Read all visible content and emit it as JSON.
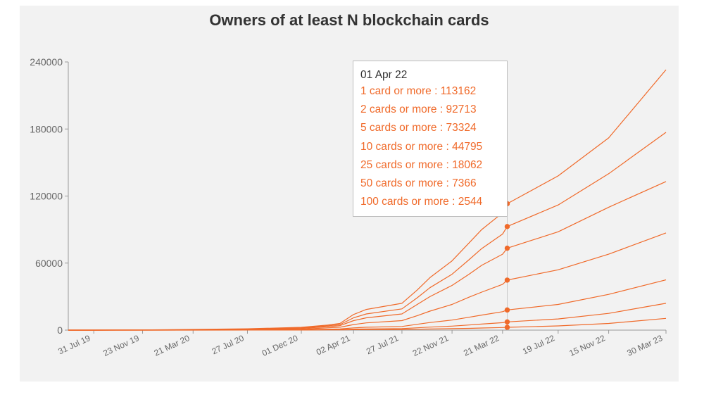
{
  "chart_data": {
    "type": "line",
    "title": "Owners of at least N blockchain cards",
    "xlabel": "",
    "ylabel": "",
    "ylim": [
      0,
      240000
    ],
    "y_ticks": [
      0,
      60000,
      120000,
      180000,
      240000
    ],
    "y_tick_labels": [
      "0",
      "60000",
      "120000",
      "180000",
      "240000"
    ],
    "x_tick_labels": [
      "31 Jul 19",
      "23 Nov 19",
      "21 Mar 20",
      "27 Jul 20",
      "01 Dec 20",
      "02 Apr 21",
      "27 Jul 21",
      "22 Nov 21",
      "21 Mar 22",
      "19 Jul 22",
      "15 Nov 22",
      "30 Mar 23"
    ],
    "x": [
      "01 Jun 19",
      "31 Jul 19",
      "23 Nov 19",
      "21 Mar 20",
      "27 Jul 20",
      "01 Dec 20",
      "01 Feb 21",
      "01 Mar 21",
      "02 Apr 21",
      "01 May 21",
      "27 Jul 21",
      "01 Sep 21",
      "01 Oct 21",
      "22 Nov 21",
      "01 Jan 22",
      "01 Feb 22",
      "21 Mar 22",
      "01 Apr 22",
      "19 Jul 22",
      "15 Nov 22",
      "30 Mar 23"
    ],
    "x_positions": [
      0,
      60,
      175,
      294,
      422,
      549,
      610,
      640,
      672,
      702,
      786,
      822,
      852,
      904,
      944,
      974,
      1023,
      1034,
      1154,
      1273,
      1408
    ],
    "line_color": "#f06a2a",
    "grid": false,
    "series": [
      {
        "name": "1 card or more",
        "values": [
          0,
          0,
          200,
          600,
          1200,
          2500,
          4500,
          6000,
          14000,
          18500,
          24000,
          36000,
          47000,
          62000,
          78000,
          90000,
          105000,
          113162,
          138000,
          172000,
          233000
        ]
      },
      {
        "name": "2 cards or more",
        "values": [
          0,
          0,
          150,
          450,
          900,
          2000,
          3800,
          5000,
          11000,
          14500,
          19000,
          29000,
          38000,
          50000,
          63000,
          73000,
          86000,
          92713,
          112000,
          140000,
          177000
        ]
      },
      {
        "name": "5 cards or more",
        "values": [
          0,
          0,
          100,
          300,
          650,
          1500,
          3000,
          4000,
          8500,
          11000,
          14500,
          23000,
          30000,
          40000,
          50000,
          58000,
          68000,
          73324,
          88000,
          110000,
          133000
        ]
      },
      {
        "name": "10 cards or more",
        "values": [
          0,
          0,
          60,
          200,
          400,
          900,
          2000,
          2600,
          5000,
          6500,
          8500,
          13000,
          17000,
          23000,
          29500,
          34000,
          41000,
          44795,
          54000,
          68000,
          87000
        ]
      },
      {
        "name": "25 cards or more",
        "values": [
          0,
          0,
          30,
          80,
          180,
          400,
          800,
          1100,
          2000,
          2600,
          3300,
          5200,
          6800,
          9000,
          11500,
          13500,
          16500,
          18062,
          23000,
          32000,
          45000
        ]
      },
      {
        "name": "50 cards or more",
        "values": [
          0,
          0,
          15,
          40,
          90,
          200,
          400,
          500,
          900,
          1100,
          1400,
          2100,
          2700,
          3600,
          4600,
          5400,
          6700,
          7366,
          10000,
          15000,
          24000
        ]
      },
      {
        "name": "100 cards or more",
        "values": [
          0,
          0,
          5,
          15,
          40,
          90,
          180,
          220,
          350,
          450,
          550,
          800,
          1000,
          1300,
          1600,
          1900,
          2300,
          2544,
          3800,
          6000,
          10500
        ]
      }
    ],
    "tooltip": {
      "date": "01 Apr 22",
      "rows": [
        {
          "label": "1 card or more : 113162"
        },
        {
          "label": "2 cards or more : 92713"
        },
        {
          "label": "5 cards or more : 73324"
        },
        {
          "label": "10 cards or more : 44795"
        },
        {
          "label": "25 cards or more : 18062"
        },
        {
          "label": "50 cards or more : 7366"
        },
        {
          "label": "100 cards or more : 2544"
        }
      ],
      "point_index": 17
    }
  }
}
